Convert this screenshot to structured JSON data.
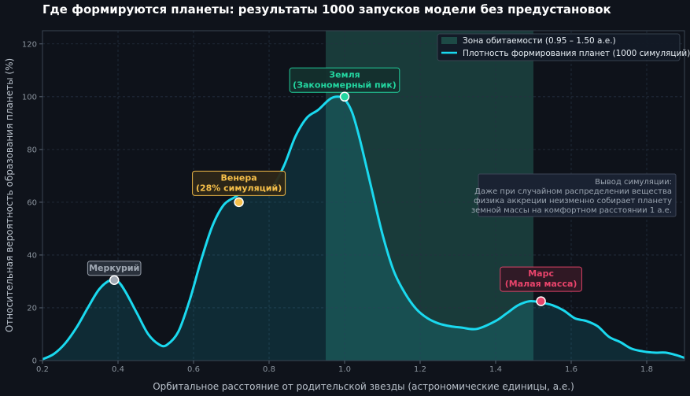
{
  "title": "Где формируются планеты: результаты 1000 запусков модели без предустановок",
  "colors": {
    "background": "#0f131b",
    "plot_bg": "#0e121a",
    "curve": "#1ad9ef",
    "habitable_zone": "#1d4a46",
    "grid": "#253040",
    "mercury": "#a0a8b3",
    "venus": "#f7c04a",
    "earth": "#23d6a0",
    "mars": "#e8446b"
  },
  "chart_data": {
    "type": "area",
    "xlabel": "Орбитальное расстояние от родительской звезды (астрономические единицы, а.е.)",
    "ylabel": "Относительная вероятность образования планеты (%)",
    "xlim": [
      0.2,
      1.9
    ],
    "ylim": [
      0,
      125
    ],
    "xticks": [
      "0.2",
      "0.4",
      "0.6",
      "0.8",
      "1.0",
      "1.2",
      "1.4",
      "1.6",
      "1.8"
    ],
    "yticks": [
      "0",
      "20",
      "40",
      "60",
      "80",
      "100",
      "120"
    ],
    "grid": true,
    "legend_position": "top-right",
    "habitable_zone": {
      "from": 0.95,
      "to": 1.5,
      "label": "Зона обитаемости (0.95 – 1.50 а.е.)"
    },
    "series": [
      {
        "name": "Плотность формирования планет (1000 симуляций)",
        "x": [
          0.2,
          0.23,
          0.26,
          0.29,
          0.32,
          0.35,
          0.38,
          0.4,
          0.42,
          0.45,
          0.48,
          0.51,
          0.53,
          0.56,
          0.59,
          0.62,
          0.65,
          0.68,
          0.71,
          0.73,
          0.75,
          0.78,
          0.81,
          0.84,
          0.87,
          0.9,
          0.93,
          0.96,
          0.98,
          1.0,
          1.02,
          1.04,
          1.07,
          1.1,
          1.13,
          1.16,
          1.19,
          1.22,
          1.25,
          1.28,
          1.31,
          1.35,
          1.4,
          1.43,
          1.46,
          1.49,
          1.52,
          1.55,
          1.58,
          1.61,
          1.64,
          1.67,
          1.7,
          1.73,
          1.76,
          1.79,
          1.82,
          1.85,
          1.88,
          1.9
        ],
        "y": [
          0.5,
          2.5,
          6.5,
          12.5,
          20,
          27,
          30.5,
          30,
          26,
          18,
          10,
          6,
          6,
          11,
          23,
          38,
          51,
          59,
          62,
          64,
          65.5,
          63.5,
          66,
          74,
          85,
          92,
          95,
          99,
          100,
          99,
          94,
          84,
          66,
          48,
          34,
          25.5,
          19.5,
          16,
          14,
          13,
          12.5,
          12,
          15,
          18,
          21,
          22.5,
          22,
          21,
          19,
          16,
          15,
          13,
          9,
          7,
          4.5,
          3.5,
          3,
          3,
          2,
          1
        ]
      }
    ],
    "points": [
      {
        "name": "Меркурий",
        "x": 0.39,
        "y": 30.5,
        "label": [
          "Меркурий"
        ]
      },
      {
        "name": "Венера",
        "x": 0.72,
        "y": 60,
        "label": [
          "Венера",
          "(28% симуляций)"
        ]
      },
      {
        "name": "Земля",
        "x": 1.0,
        "y": 100,
        "label": [
          "Земля",
          "(Закономерный пик)"
        ]
      },
      {
        "name": "Марс",
        "x": 1.52,
        "y": 22.5,
        "label": [
          "Марс",
          "(Малая масса)"
        ]
      }
    ],
    "conclusion": [
      "Вывод симуляции:",
      "Даже при случайном распределении вещества",
      "физика аккреции неизменно собирает планету",
      "земной массы на комфортном расстоянии 1 а.е."
    ]
  }
}
